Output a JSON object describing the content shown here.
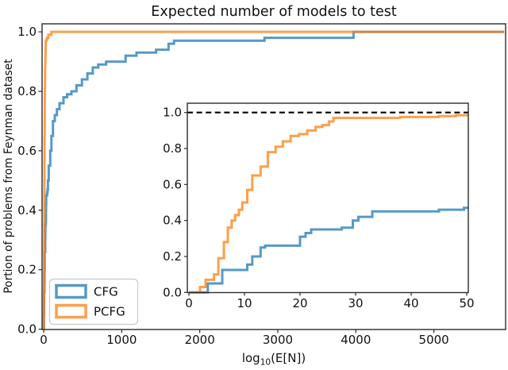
{
  "figure": {
    "title": "Expected number of models to test",
    "ylabel": "Portion of problems from Feynman dataset",
    "xlabel_parts": [
      "log",
      "10",
      "(E[N])"
    ]
  },
  "legend": {
    "items": [
      {
        "label": "CFG",
        "color": "rgba(31,119,180,0.75)"
      },
      {
        "label": "PCFG",
        "color": "rgba(255,127,14,0.75)"
      }
    ]
  },
  "colors": {
    "cfg": "rgba(31,119,180,0.75)",
    "pcfg": "rgba(255,127,14,0.75)",
    "spine": "#2b2b2b",
    "dashed_reference": "#000000",
    "legend_border": "#c9c9c9"
  },
  "chart_data": [
    {
      "id": "main",
      "type": "line",
      "step": true,
      "title": "Expected number of models to test",
      "xlabel": "log10(E[N])",
      "ylabel": "Portion of problems from Feynman dataset",
      "xlim": [
        -20,
        5920
      ],
      "ylim": [
        0,
        1.027
      ],
      "grid": false,
      "legend_position": "lower left",
      "xticks": {
        "values": [
          0,
          1000,
          2000,
          3000,
          4000,
          5000
        ],
        "labels": [
          "0",
          "1000",
          "2000",
          "3000",
          "4000",
          "5000"
        ]
      },
      "yticks": {
        "values": [
          0.0,
          0.2,
          0.4,
          0.6,
          0.8,
          1.0
        ],
        "labels": [
          "0.0",
          "0.2",
          "0.4",
          "0.6",
          "0.8",
          "1.0"
        ]
      },
      "series": [
        {
          "name": "CFG",
          "color": "rgba(31,119,180,0.75)",
          "points": [
            [
              0,
              0
            ],
            [
              3.4,
              0.05
            ],
            [
              6,
              0.125
            ],
            [
              10.5,
              0.155
            ],
            [
              11.4,
              0.2
            ],
            [
              12.9,
              0.25
            ],
            [
              13.7,
              0.26
            ],
            [
              20,
              0.31
            ],
            [
              21,
              0.33
            ],
            [
              22,
              0.35
            ],
            [
              27.5,
              0.36
            ],
            [
              29.5,
              0.4
            ],
            [
              30.5,
              0.42
            ],
            [
              33,
              0.45
            ],
            [
              45,
              0.46
            ],
            [
              50,
              0.47
            ],
            [
              55,
              0.5
            ],
            [
              65,
              0.55
            ],
            [
              84,
              0.6
            ],
            [
              100,
              0.65
            ],
            [
              119,
              0.7
            ],
            [
              142,
              0.72
            ],
            [
              170,
              0.74
            ],
            [
              203,
              0.76
            ],
            [
              254,
              0.78
            ],
            [
              300,
              0.79
            ],
            [
              356,
              0.8
            ],
            [
              420,
              0.82
            ],
            [
              490,
              0.84
            ],
            [
              560,
              0.86
            ],
            [
              630,
              0.88
            ],
            [
              700,
              0.89
            ],
            [
              800,
              0.9
            ],
            [
              1050,
              0.92
            ],
            [
              1190,
              0.93
            ],
            [
              1440,
              0.94
            ],
            [
              1600,
              0.96
            ],
            [
              1670,
              0.97
            ],
            [
              2830,
              0.98
            ],
            [
              3970,
              1.0
            ],
            [
              5900,
              1.0
            ]
          ]
        },
        {
          "name": "PCFG",
          "color": "rgba(255,127,14,0.75)",
          "points": [
            [
              0,
              0
            ],
            [
              2,
              0.03
            ],
            [
              3,
              0.07
            ],
            [
              4.5,
              0.1
            ],
            [
              5.3,
              0.19
            ],
            [
              6.3,
              0.28
            ],
            [
              7,
              0.36
            ],
            [
              7.7,
              0.4
            ],
            [
              8.3,
              0.43
            ],
            [
              9,
              0.46
            ],
            [
              9.6,
              0.5
            ],
            [
              10.5,
              0.57
            ],
            [
              11.4,
              0.65
            ],
            [
              12.9,
              0.7
            ],
            [
              14.2,
              0.78
            ],
            [
              15.6,
              0.81
            ],
            [
              16.9,
              0.84
            ],
            [
              18.3,
              0.87
            ],
            [
              19.8,
              0.88
            ],
            [
              21.3,
              0.9
            ],
            [
              22.8,
              0.92
            ],
            [
              24,
              0.93
            ],
            [
              25.2,
              0.95
            ],
            [
              26,
              0.97
            ],
            [
              38,
              0.975
            ],
            [
              45,
              0.98
            ],
            [
              60,
              0.99
            ],
            [
              100,
              1.0
            ],
            [
              5900,
              1.0
            ]
          ]
        }
      ]
    },
    {
      "id": "inset",
      "type": "line",
      "step": true,
      "xlim": [
        -0.3,
        50.3
      ],
      "ylim": [
        0,
        1.052
      ],
      "grid": false,
      "reference_line": {
        "y": 1.0,
        "style": "dashed",
        "color": "#000000"
      },
      "xticks": {
        "values": [
          0,
          10,
          20,
          30,
          40,
          50
        ],
        "labels": [
          "0",
          "10",
          "20",
          "30",
          "40",
          "50"
        ]
      },
      "yticks": {
        "values": [
          0.0,
          0.2,
          0.4,
          0.6,
          0.8,
          1.0
        ],
        "labels": [
          "0.0",
          "0.2",
          "0.4",
          "0.6",
          "0.8",
          "1.0"
        ]
      },
      "series": [
        {
          "name": "CFG",
          "color": "rgba(31,119,180,0.75)",
          "points": [
            [
              0,
              0
            ],
            [
              3.4,
              0.05
            ],
            [
              6,
              0.125
            ],
            [
              10.5,
              0.155
            ],
            [
              11.4,
              0.2
            ],
            [
              12.9,
              0.25
            ],
            [
              13.7,
              0.26
            ],
            [
              20,
              0.31
            ],
            [
              21,
              0.33
            ],
            [
              22,
              0.35
            ],
            [
              27.5,
              0.36
            ],
            [
              29.5,
              0.4
            ],
            [
              30.5,
              0.42
            ],
            [
              33,
              0.45
            ],
            [
              45,
              0.46
            ],
            [
              49.5,
              0.47
            ],
            [
              50.3,
              0.47
            ]
          ]
        },
        {
          "name": "PCFG",
          "color": "rgba(255,127,14,0.75)",
          "points": [
            [
              0,
              0
            ],
            [
              2,
              0.03
            ],
            [
              3,
              0.07
            ],
            [
              4.5,
              0.1
            ],
            [
              5.3,
              0.19
            ],
            [
              6.3,
              0.28
            ],
            [
              7,
              0.36
            ],
            [
              7.7,
              0.4
            ],
            [
              8.3,
              0.43
            ],
            [
              9,
              0.46
            ],
            [
              9.6,
              0.5
            ],
            [
              10.5,
              0.57
            ],
            [
              11.4,
              0.65
            ],
            [
              12.9,
              0.7
            ],
            [
              14.2,
              0.78
            ],
            [
              15.6,
              0.81
            ],
            [
              16.9,
              0.84
            ],
            [
              18.3,
              0.87
            ],
            [
              19.8,
              0.88
            ],
            [
              21.3,
              0.9
            ],
            [
              22.8,
              0.92
            ],
            [
              24,
              0.93
            ],
            [
              25.2,
              0.95
            ],
            [
              26,
              0.97
            ],
            [
              38,
              0.975
            ],
            [
              45,
              0.98
            ],
            [
              48,
              0.985
            ],
            [
              50.3,
              0.985
            ]
          ]
        }
      ]
    }
  ]
}
